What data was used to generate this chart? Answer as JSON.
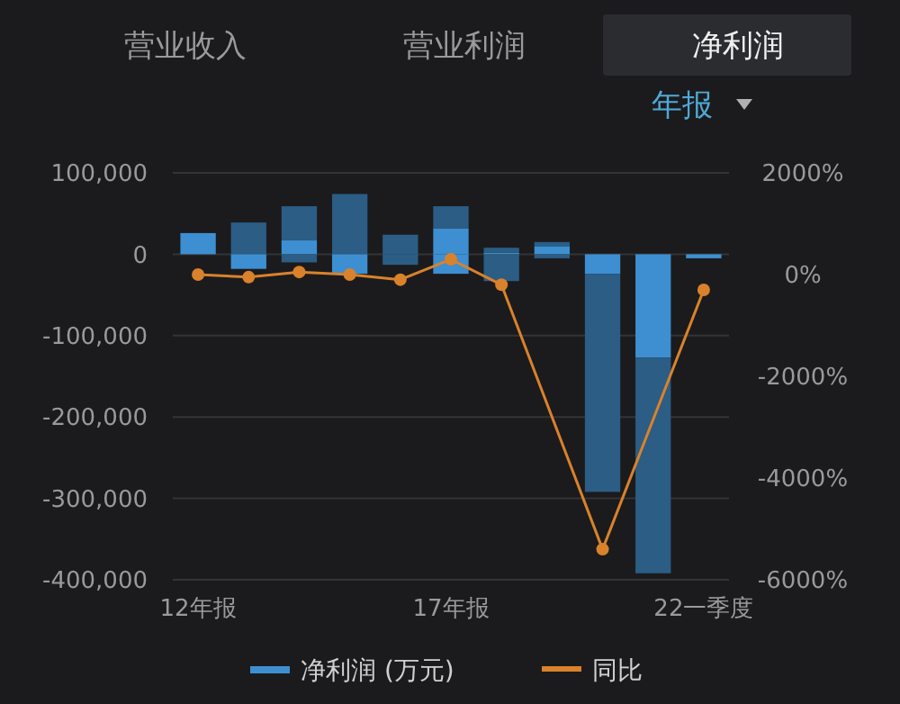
{
  "chart_data": {
    "type": "bar",
    "stacked": true,
    "annotations": [
      "营业收入",
      "营业利润",
      "净利润",
      "年报"
    ],
    "categories": [
      "12年报",
      null,
      null,
      null,
      null,
      "17年报",
      null,
      null,
      null,
      null,
      "22一季度"
    ],
    "series": [
      {
        "name": "净利润 (万元)",
        "color": "#3d8fd1",
        "values": [
          26000,
          null,
          17000,
          null,
          null,
          32000,
          2000,
          10000,
          null,
          null,
          null
        ]
      },
      {
        "color": "#2b5d85",
        "values": [
          null,
          39000,
          42000,
          74000,
          24000,
          27000,
          6000,
          5000,
          null,
          null,
          null
        ]
      },
      {
        "color": "#3d8fd1",
        "values": [
          null,
          -18000,
          null,
          -24000,
          null,
          -24000,
          null,
          null,
          -24000,
          -127000,
          -5000
        ]
      },
      {
        "color": "#2b5d85",
        "values": [
          null,
          null,
          -10000,
          null,
          -13000,
          null,
          -33000,
          -5000,
          -268000,
          -265000,
          null
        ]
      },
      {
        "name": "同比",
        "type": "line",
        "axis": "y2",
        "color": "#d9822b",
        "values": [
          0,
          -50,
          50,
          0,
          -100,
          300,
          -200,
          null,
          -5400,
          null,
          -300
        ]
      }
    ],
    "ylim": [
      -400000,
      100000
    ],
    "yticks": [
      {
        "value": -400000,
        "label": "-400,000"
      },
      {
        "value": -300000,
        "label": "-300,000"
      },
      {
        "value": -200000,
        "label": "-200,000"
      },
      {
        "value": -100000,
        "label": "-100,000"
      },
      0,
      {
        "value": 100000,
        "label": "100,000"
      }
    ],
    "y2lim": [
      -6000,
      2000
    ],
    "y2ticks": [
      {
        "value": -6000,
        "label": "-6000%"
      },
      {
        "value": -4000,
        "label": "-4000%"
      },
      {
        "value": -2000,
        "label": "-2000%"
      },
      {
        "value": 0,
        "label": "0%"
      },
      {
        "value": 2000,
        "label": "2000%"
      }
    ],
    "grid": "y",
    "legend": "bottom",
    "marker": "circle"
  }
}
